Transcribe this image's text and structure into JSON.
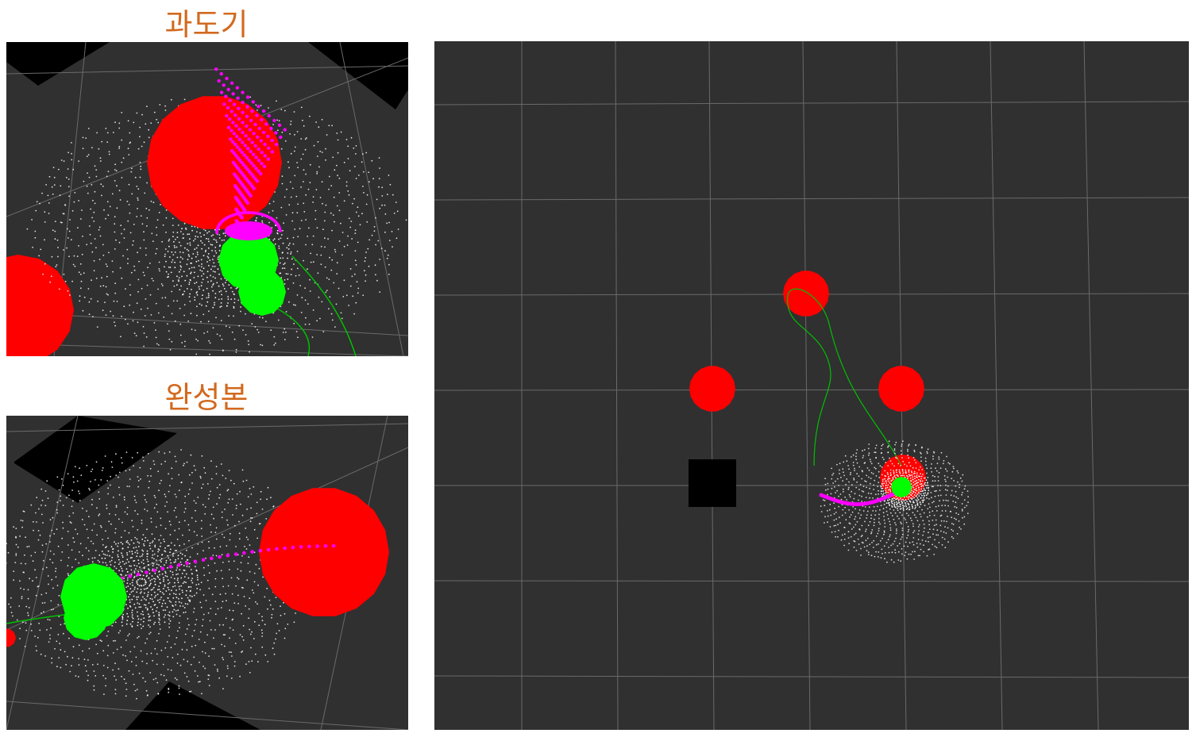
{
  "captions": {
    "top_left": "과도기",
    "bottom_left": "완성본"
  },
  "colors": {
    "caption": "#d2691e",
    "background": "#303030",
    "grid": "#6a6a6a",
    "obstacle": "#ff0000",
    "robot": "#00ff00",
    "trajectory": "#00c000",
    "predicted_path": "#ff00ff",
    "samples": "#ffffff",
    "block": "#000000"
  },
  "views": {
    "transition_view": {
      "label_key": "top_left"
    },
    "final_view": {
      "label_key": "bottom_left"
    },
    "overview": {
      "obstacles_count_visible": 4,
      "blocks_visible": 1
    }
  }
}
